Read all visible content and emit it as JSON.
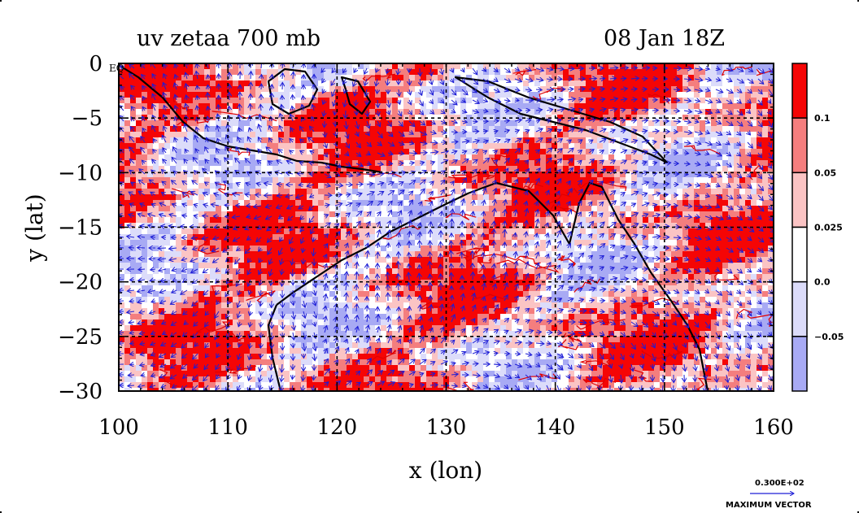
{
  "chart_data": {
    "type": "heatmap",
    "title_left": "uv zetaa 700 mb",
    "title_right": "08 Jan 18Z",
    "xlabel": "x (lon)",
    "ylabel": "y (lat)",
    "xlim": [
      100,
      160
    ],
    "ylim": [
      -30,
      0
    ],
    "x_ticks": [
      100,
      110,
      120,
      130,
      140,
      150,
      160
    ],
    "x_tick_labels": [
      "100",
      "110",
      "120",
      "130",
      "140",
      "150",
      "160"
    ],
    "y_ticks": [
      0,
      -5,
      -10,
      -15,
      -20,
      -25,
      -30
    ],
    "y_tick_labels": [
      "0",
      "−5",
      "−10",
      "−15",
      "−20",
      "−25",
      "−30"
    ],
    "corner_label": "EQ",
    "grid": true,
    "colorbar": {
      "levels": [
        -0.05,
        0.0,
        0.025,
        0.05,
        0.1
      ],
      "labels": [
        "−0.05",
        "0.0",
        "0.025",
        "0.05",
        "0.1"
      ],
      "colors": [
        "#a8aaf4",
        "#dcdcfa",
        "#ffffff",
        "#fbc4c4",
        "#f47e7e",
        "#f50505"
      ]
    },
    "vector_legend": {
      "value": "0.300E+02",
      "label": "MAXIMUM VECTOR"
    },
    "colors": {
      "coast": "#000000",
      "vector": "#1d1dd6",
      "contour": "#e00000"
    }
  }
}
